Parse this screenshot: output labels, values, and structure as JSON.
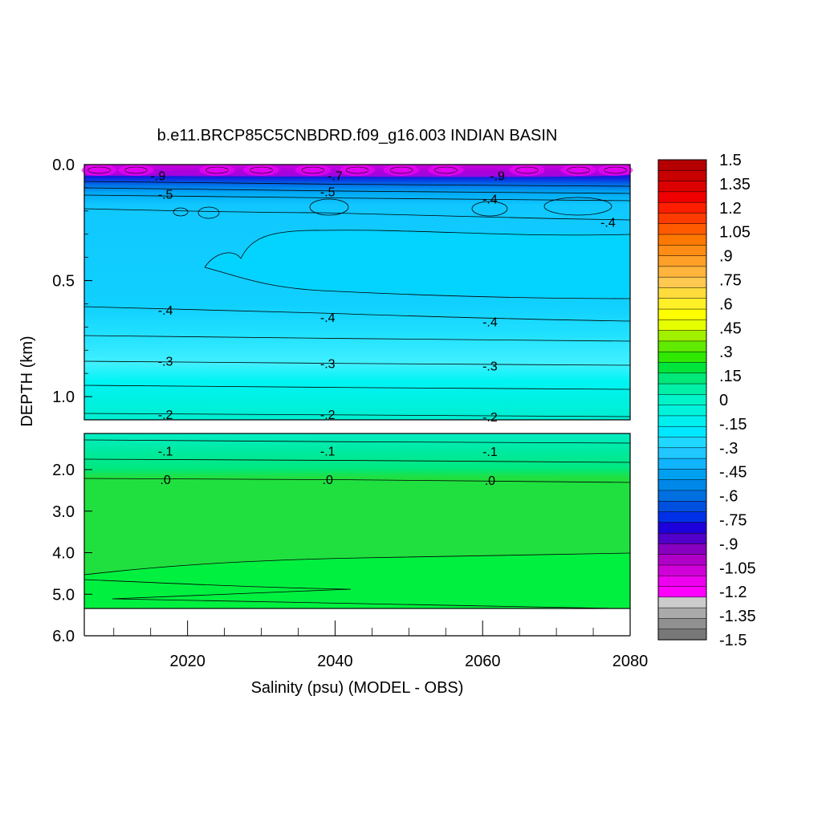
{
  "chart_data": {
    "type": "heatmap",
    "title": "b.e11.BRCP85C5CNBDRD.f09_g16.003 INDIAN BASIN",
    "xlabel": "Salinity (psu) (MODEL - OBS)",
    "ylabel": "DEPTH (km)",
    "xlim": [
      2006,
      2080
    ],
    "x_ticks": [
      "2020",
      "2040",
      "2060",
      "2080"
    ],
    "upper_panel": {
      "ylim": [
        0.0,
        1.1
      ],
      "y_ticks": [
        "0.0",
        "0.5",
        "1.0"
      ],
      "contour_labels": [
        {
          "text": "-.4",
          "x": 2017,
          "depth": 0.63
        },
        {
          "text": "-.4",
          "x": 2039,
          "depth": 0.66
        },
        {
          "text": "-.4",
          "x": 2061,
          "depth": 0.68
        },
        {
          "text": "-.4",
          "x": 2077,
          "depth": 0.25
        },
        {
          "text": "-.3",
          "x": 2017,
          "depth": 0.85
        },
        {
          "text": "-.3",
          "x": 2039,
          "depth": 0.86
        },
        {
          "text": "-.3",
          "x": 2061,
          "depth": 0.87
        },
        {
          "text": "-.2",
          "x": 2017,
          "depth": 1.08
        },
        {
          "text": "-.2",
          "x": 2039,
          "depth": 1.08
        },
        {
          "text": "-.2",
          "x": 2061,
          "depth": 1.09
        },
        {
          "text": "-.5",
          "x": 2017,
          "depth": 0.13
        },
        {
          "text": "-.5",
          "x": 2039,
          "depth": 0.12
        },
        {
          "text": "-.4",
          "x": 2061,
          "depth": 0.15
        },
        {
          "text": "-.9",
          "x": 2016,
          "depth": 0.05
        },
        {
          "text": "-.7",
          "x": 2040,
          "depth": 0.05
        },
        {
          "text": "-.9",
          "x": 2062,
          "depth": 0.05
        }
      ]
    },
    "lower_panel": {
      "ylim": [
        1.1,
        6.0
      ],
      "y_ticks": [
        "2.0",
        "3.0",
        "4.0",
        "5.0",
        "6.0"
      ],
      "contour_labels": [
        {
          "text": "-.1",
          "x": 2017,
          "depth": 1.55
        },
        {
          "text": "-.1",
          "x": 2039,
          "depth": 1.55
        },
        {
          "text": "-.1",
          "x": 2061,
          "depth": 1.56
        },
        {
          "text": ".0",
          "x": 2017,
          "depth": 2.25
        },
        {
          "text": ".0",
          "x": 2039,
          "depth": 2.25
        },
        {
          "text": ".0",
          "x": 2061,
          "depth": 2.27
        }
      ]
    },
    "colorbar": {
      "labels": [
        "1.5",
        "1.35",
        "1.2",
        "1.05",
        ".9",
        ".75",
        ".6",
        ".45",
        ".3",
        ".15",
        "0",
        "-.15",
        "-.3",
        "-.45",
        "-.6",
        "-.75",
        "-.9",
        "-1.05",
        "-1.2",
        "-1.35",
        "-1.5"
      ],
      "colors": [
        "#b40000",
        "#c80000",
        "#dc0000",
        "#f00000",
        "#ff1e00",
        "#ff3c00",
        "#ff5a00",
        "#ff7800",
        "#ff8c14",
        "#ffa028",
        "#ffb43c",
        "#ffc850",
        "#ffdc3c",
        "#fff028",
        "#ffff00",
        "#e6ff00",
        "#a0f000",
        "#60ea00",
        "#30e800",
        "#00e43c",
        "#00e878",
        "#00f0a8",
        "#00f4c8",
        "#00f4dc",
        "#00f0f0",
        "#00e8ff",
        "#20d8ff",
        "#20c8ff",
        "#10b4ff",
        "#00a0f0",
        "#0088e8",
        "#0070e0",
        "#0050e0",
        "#0030e8",
        "#1e00dc",
        "#5000c8",
        "#8800c0",
        "#b000c8",
        "#d000d8",
        "#ee00f0",
        "#ff00ff",
        "#cccccc",
        "#aaaaaa",
        "#909090",
        "#787878"
      ]
    }
  }
}
